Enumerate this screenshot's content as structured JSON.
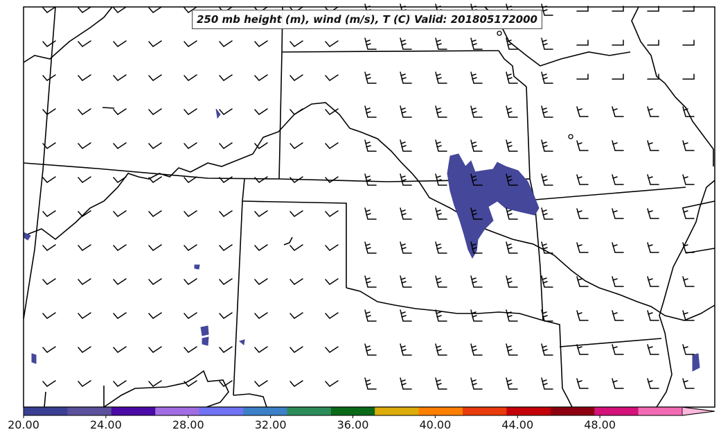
{
  "title": "250 mb height (m), wind (m/s), T (C) Valid: 201805172000",
  "colorbar": {
    "tick_labels": [
      "20.00",
      "24.00",
      "28.00",
      "32.00",
      "36.00",
      "40.00",
      "44.00",
      "48.00"
    ],
    "colors": [
      "#3a3f91",
      "#5b509c",
      "#4a0aa6",
      "#a26de2",
      "#6f73f4",
      "#3c80c8",
      "#2b8c5a",
      "#0a6a18",
      "#dcac0a",
      "#ff7f00",
      "#e83a0a",
      "#c40008",
      "#8c0010",
      "#d4127a",
      "#f36ab4"
    ],
    "range": [
      20,
      52
    ],
    "extend": "max"
  },
  "fill_color": "#45479a"
}
